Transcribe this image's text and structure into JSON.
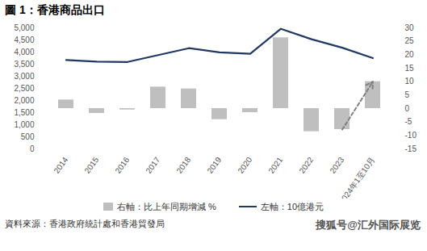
{
  "chart_data": {
    "type": "bar",
    "title": "圖 1：香港商品出口",
    "source": "資料來源：香港政府統計處和香港貿發局",
    "watermark": "搜狐号@汇外国际展览",
    "categories": [
      "2014",
      "2015",
      "2016",
      "2017",
      "2018",
      "2019",
      "2020",
      "2021",
      "2022",
      "2023",
      "2024年1至10月"
    ],
    "series": [
      {
        "name": "右軸：比上年同期增減 %",
        "type": "bar",
        "axis": "y2",
        "color": "#bfbfbf",
        "values": [
          3.2,
          -1.8,
          -0.5,
          8.0,
          7.3,
          -4.1,
          -1.5,
          26.3,
          -8.6,
          -7.8,
          10.0
        ]
      },
      {
        "name": "左軸：10億港元",
        "type": "line",
        "color": "#203864",
        "values": [
          3670,
          3605,
          3590,
          3875,
          4160,
          3990,
          3930,
          4960,
          4530,
          4180,
          3750
        ]
      }
    ],
    "ylim": [
      0,
      5000
    ],
    "yticks": [
      0,
      500,
      {
        "value": 1000,
        "label": "1,000"
      },
      {
        "value": 1500,
        "label": "1,500"
      },
      {
        "value": 2000,
        "label": "2,000"
      },
      {
        "value": 2500,
        "label": "2,500"
      },
      {
        "value": 3000,
        "label": "3,000"
      },
      {
        "value": 3500,
        "label": "3,500"
      },
      {
        "value": 4000,
        "label": "4,000"
      },
      {
        "value": 4500,
        "label": "4,500"
      },
      {
        "value": 5000,
        "label": "5,000"
      }
    ],
    "y2lim": [
      -15,
      30
    ],
    "y2ticks": [
      -15,
      -10,
      -5,
      0,
      5,
      10,
      15,
      20,
      25,
      30
    ],
    "legend": "bottom",
    "grid": false
  }
}
